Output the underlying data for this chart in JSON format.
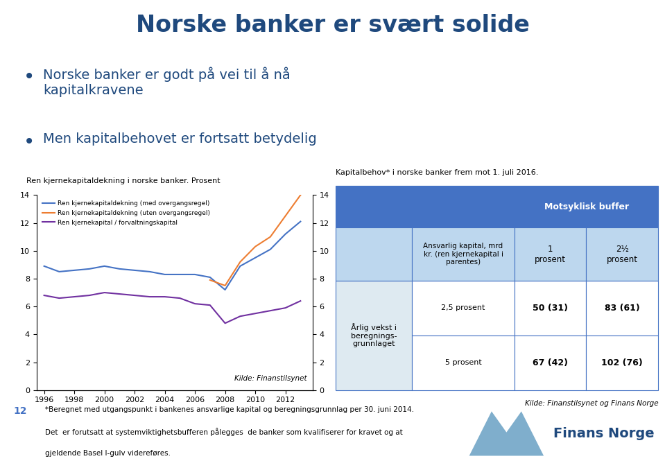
{
  "title": "Norske banker er svært solide",
  "bullet1": "Norske banker er godt på vei til å nå\nkapitalkravene",
  "bullet2": "Men kapitalbehovet er fortsatt betydelig",
  "chart_title": "Ren kjernekapitaldekning i norske banker. Prosent",
  "table_title": "Kapitalbehov* i norske banker frem mot 1. juli 2016.",
  "kilde_chart": "Kilde: Finanstilsynet",
  "kilde_table": "Kilde: Finanstilsynet og Finans Norge",
  "footnote_num": "12",
  "footnote_text1": "*Beregnet med utgangspunkt i bankenes ansvarlige kapital og beregningsgrunnlag per 30. juni 2014.",
  "footnote_text2": "Det  er forutsatt at systemviktighetsbufferen pålegges  de banker som kvalifiserer for kravet og at",
  "footnote_text3": "gjeldende Basel I-gulv videreføres.",
  "legend1": "Ren kjernekapitaldekning (med overgangsregel)",
  "legend2": "Ren kjernekapitaldekning (uten overgangsregel)",
  "legend3": "Ren kjernekapital / forvaltningskapital",
  "line_color1": "#4472C4",
  "line_color2": "#ED7D31",
  "line_color3": "#7030A0",
  "bg_color": "#FFFFFF",
  "header_color": "#4472C4",
  "subheader_color": "#BDD7EE",
  "row_color_light": "#DEEAF1",
  "row_color_white": "#FFFFFF",
  "border_color": "#4472C4",
  "title_color": "#1F497D",
  "bullet_color": "#1F497D",
  "footnote_num_color": "#4472C4",
  "logo_color": "#7FAECC",
  "logo_text_color": "#1F497D",
  "years": [
    1996,
    1997,
    1998,
    1999,
    2000,
    2001,
    2002,
    2003,
    2004,
    2005,
    2006,
    2007,
    2008,
    2009,
    2010,
    2011,
    2012,
    2013
  ],
  "series1": [
    8.9,
    8.5,
    8.6,
    8.7,
    8.9,
    8.7,
    8.6,
    8.5,
    8.3,
    8.3,
    8.3,
    8.1,
    7.2,
    8.9,
    9.5,
    10.1,
    11.2,
    12.1
  ],
  "series2": [
    null,
    null,
    null,
    null,
    null,
    null,
    null,
    null,
    null,
    null,
    null,
    7.9,
    7.5,
    9.2,
    10.3,
    11.0,
    12.5,
    14.0
  ],
  "series3": [
    6.8,
    6.6,
    6.7,
    6.8,
    7.0,
    6.9,
    6.8,
    6.7,
    6.7,
    6.6,
    6.2,
    6.1,
    4.8,
    5.3,
    5.5,
    5.7,
    5.9,
    6.4
  ],
  "ylim": [
    0,
    14
  ],
  "yticks": [
    0,
    2,
    4,
    6,
    8,
    10,
    12,
    14
  ]
}
